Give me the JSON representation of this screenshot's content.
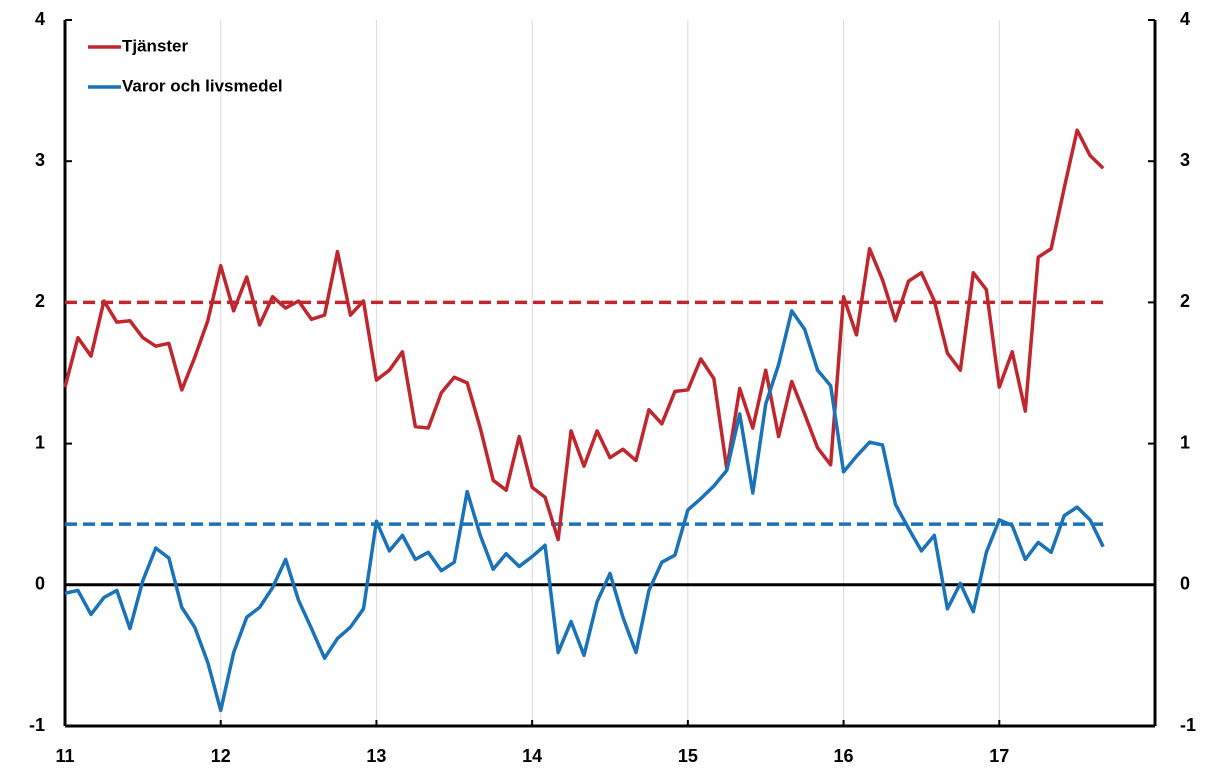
{
  "chart_data": {
    "type": "line",
    "x": [
      11,
      11.083,
      11.167,
      11.25,
      11.333,
      11.417,
      11.5,
      11.583,
      11.667,
      11.75,
      11.833,
      11.917,
      12,
      12.083,
      12.167,
      12.25,
      12.333,
      12.417,
      12.5,
      12.583,
      12.667,
      12.75,
      12.833,
      12.917,
      13,
      13.083,
      13.167,
      13.25,
      13.333,
      13.417,
      13.5,
      13.583,
      13.667,
      13.75,
      13.833,
      13.917,
      14,
      14.083,
      14.167,
      14.25,
      14.333,
      14.417,
      14.5,
      14.583,
      14.667,
      14.75,
      14.833,
      14.917,
      15,
      15.083,
      15.167,
      15.25,
      15.333,
      15.417,
      15.5,
      15.583,
      15.667,
      15.75,
      15.833,
      15.917,
      16,
      16.083,
      16.167,
      16.25,
      16.333,
      16.417,
      16.5,
      16.583,
      16.667,
      16.75,
      16.833,
      16.917,
      17,
      17.083,
      17.167,
      17.25,
      17.333,
      17.417,
      17.5,
      17.583,
      17.667
    ],
    "series": [
      {
        "name": "Tjänster",
        "color": "#c0262d",
        "values": [
          1.4,
          1.75,
          1.62,
          2.01,
          1.86,
          1.87,
          1.75,
          1.69,
          1.71,
          1.38,
          1.61,
          1.87,
          2.26,
          1.94,
          2.18,
          1.84,
          2.04,
          1.96,
          2.01,
          1.88,
          1.91,
          2.36,
          1.91,
          2.01,
          1.45,
          1.52,
          1.65,
          1.12,
          1.11,
          1.36,
          1.47,
          1.43,
          1.11,
          0.74,
          0.67,
          1.05,
          0.69,
          0.62,
          0.32,
          1.09,
          0.84,
          1.09,
          0.9,
          0.96,
          0.88,
          1.24,
          1.14,
          1.37,
          1.38,
          1.6,
          1.46,
          0.82,
          1.39,
          1.11,
          1.52,
          1.05,
          1.44,
          1.21,
          0.97,
          0.85,
          2.04,
          1.77,
          2.38,
          2.16,
          1.87,
          2.15,
          2.21,
          2.01,
          1.64,
          1.52,
          2.21,
          2.09,
          1.4,
          1.65,
          1.23,
          2.32,
          2.38,
          2.81,
          3.22,
          3.04,
          2.95
        ]
      },
      {
        "name": "Varor och livsmedel",
        "color": "#1a72b8",
        "values": [
          -0.06,
          -0.04,
          -0.21,
          -0.09,
          -0.04,
          -0.31,
          0.03,
          0.26,
          0.19,
          -0.16,
          -0.3,
          -0.55,
          -0.89,
          -0.48,
          -0.23,
          -0.16,
          -0.02,
          0.18,
          -0.11,
          -0.31,
          -0.52,
          -0.38,
          -0.3,
          -0.17,
          0.45,
          0.24,
          0.35,
          0.18,
          0.23,
          0.1,
          0.16,
          0.66,
          0.35,
          0.11,
          0.22,
          0.13,
          0.2,
          0.28,
          -0.48,
          -0.26,
          -0.5,
          -0.12,
          0.08,
          -0.23,
          -0.48,
          -0.04,
          0.16,
          0.21,
          0.53,
          0.61,
          0.7,
          0.81,
          1.21,
          0.65,
          1.28,
          1.56,
          1.94,
          1.81,
          1.52,
          1.41,
          0.8,
          0.91,
          1.01,
          0.99,
          0.57,
          0.4,
          0.24,
          0.35,
          -0.17,
          0.01,
          -0.19,
          0.23,
          0.46,
          0.42,
          0.18,
          0.3,
          0.23,
          0.49,
          0.55,
          0.46,
          0.27
        ]
      }
    ],
    "reference_lines": [
      {
        "value": 2,
        "color": "#c0262d"
      },
      {
        "value": 0.43,
        "color": "#1a72b8"
      }
    ],
    "xlim": [
      11,
      18
    ],
    "xticks": [
      11,
      12,
      13,
      14,
      15,
      16,
      17
    ],
    "ylim": [
      -1,
      4
    ],
    "yticks": [
      -1,
      0,
      1,
      2,
      3,
      4
    ],
    "y2lim": [
      -1,
      4
    ],
    "y2ticks": [
      -1,
      0,
      1,
      2,
      3,
      4
    ],
    "grid": true,
    "legend": "upper left"
  }
}
